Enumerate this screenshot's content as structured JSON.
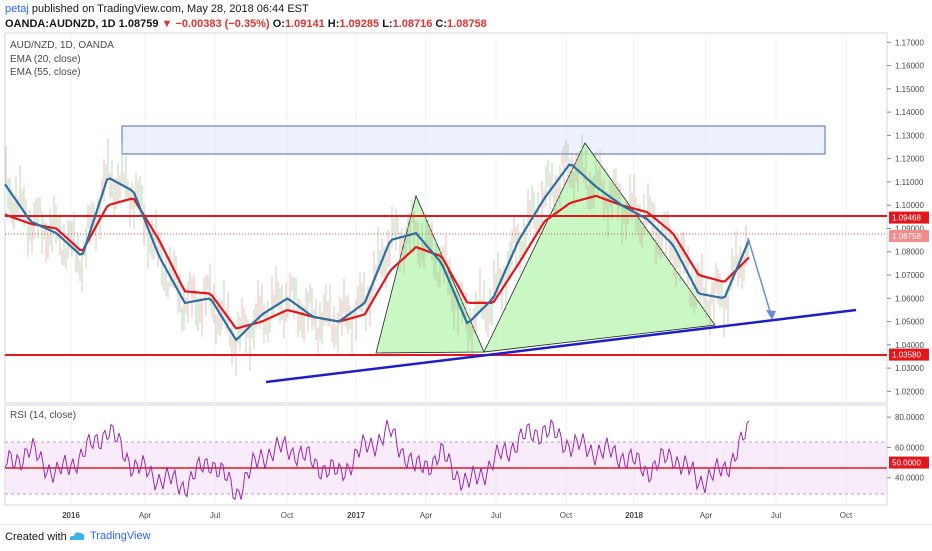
{
  "header": {
    "user": "petaj",
    "published_text": "published on TradingView.com, May 28, 2018 06:44 EST",
    "symbol": "OANDA:AUDNZD, 1D",
    "last": "1.08759",
    "change": "▼ −0.00383 (−0.35%)",
    "open_label": "O:",
    "open": "1.09141",
    "high_label": "H:",
    "high": "1.09285",
    "low_label": "L:",
    "low": "1.08716",
    "close_label": "C:",
    "close": "1.08758"
  },
  "legend": {
    "title": "AUD/NZD, 1D, OANDA",
    "ema20": "EMA (20, close)",
    "ema55": "EMA (55, close)",
    "rsi": "RSI (14, close)"
  },
  "footer": {
    "created_with": "Created with",
    "brand": "TradingView"
  },
  "colors": {
    "ema20": "#2f6fa0",
    "ema55": "#e4161b",
    "support": "#e4161b",
    "trend": "#1e1ec8",
    "rsi": "#9c27b0",
    "fill_green": "#b7f5b0",
    "box": "#4a6db8"
  },
  "chart_data": [
    {
      "type": "line",
      "title": "AUD/NZD, 1D, OANDA",
      "xlabel": "",
      "ylabel": "",
      "x_ticks": [
        "2016",
        "Apr",
        "Jul",
        "Oct",
        "2017",
        "Apr",
        "Jul",
        "Oct",
        "2018",
        "Apr",
        "Jul",
        "Oct"
      ],
      "y_ticks": [
        "1.17000",
        "1.16000",
        "1.15000",
        "1.14000",
        "1.13000",
        "1.12000",
        "1.11000",
        "1.10000",
        "1.09000",
        "1.08000",
        "1.07000",
        "1.06000",
        "1.05000",
        "1.04000",
        "1.03000",
        "1.02000"
      ],
      "ylim": [
        1.015,
        1.174
      ],
      "x": [
        "2015-12",
        "2016-01",
        "2016-02",
        "2016-03",
        "2016-04",
        "2016-05",
        "2016-06",
        "2016-07",
        "2016-08",
        "2016-09",
        "2016-10",
        "2016-11",
        "2016-12",
        "2017-01",
        "2017-02",
        "2017-03",
        "2017-04",
        "2017-05",
        "2017-06",
        "2017-07",
        "2017-08",
        "2017-09",
        "2017-10",
        "2017-11",
        "2017-12",
        "2018-01",
        "2018-02",
        "2018-03",
        "2018-04",
        "2018-05"
      ],
      "series": [
        {
          "name": "EMA (20, close)",
          "values": [
            1.109,
            1.093,
            1.088,
            1.078,
            1.112,
            1.106,
            1.078,
            1.058,
            1.06,
            1.042,
            1.053,
            1.06,
            1.052,
            1.05,
            1.058,
            1.085,
            1.088,
            1.075,
            1.049,
            1.06,
            1.085,
            1.103,
            1.118,
            1.108,
            1.1,
            1.094,
            1.083,
            1.062,
            1.06,
            1.086
          ]
        },
        {
          "name": "EMA (55, close)",
          "values": [
            1.096,
            1.092,
            1.09,
            1.08,
            1.1,
            1.103,
            1.085,
            1.063,
            1.062,
            1.047,
            1.05,
            1.055,
            1.052,
            1.05,
            1.053,
            1.072,
            1.082,
            1.078,
            1.058,
            1.058,
            1.075,
            1.093,
            1.101,
            1.104,
            1.1,
            1.097,
            1.088,
            1.07,
            1.067,
            1.078
          ]
        }
      ],
      "horizontal_levels": [
        {
          "label": "1.09468",
          "value": 1.09468
        },
        {
          "label": "1.03580",
          "value": 1.0358
        }
      ],
      "last_price_label": "1.08758",
      "annotations": [
        "resistance zone rectangle 1.122-1.134",
        "head and shoulders shaded triangles",
        "ascending trendline",
        "projected down arrow"
      ]
    },
    {
      "type": "line",
      "title": "RSI (14, close)",
      "y_ticks": [
        "80.0000",
        "60.0000",
        "40.0000"
      ],
      "ylim": [
        22,
        88
      ],
      "level_label": "50.0000",
      "bands": [
        30,
        70
      ],
      "series": [
        {
          "name": "RSI (14, close)",
          "values": [
            48,
            58,
            42,
            55,
            72,
            48,
            40,
            35,
            52,
            30,
            55,
            60,
            50,
            42,
            60,
            70,
            45,
            55,
            35,
            50,
            65,
            72,
            62,
            58,
            55,
            45,
            55,
            38,
            45,
            72
          ]
        }
      ]
    }
  ]
}
